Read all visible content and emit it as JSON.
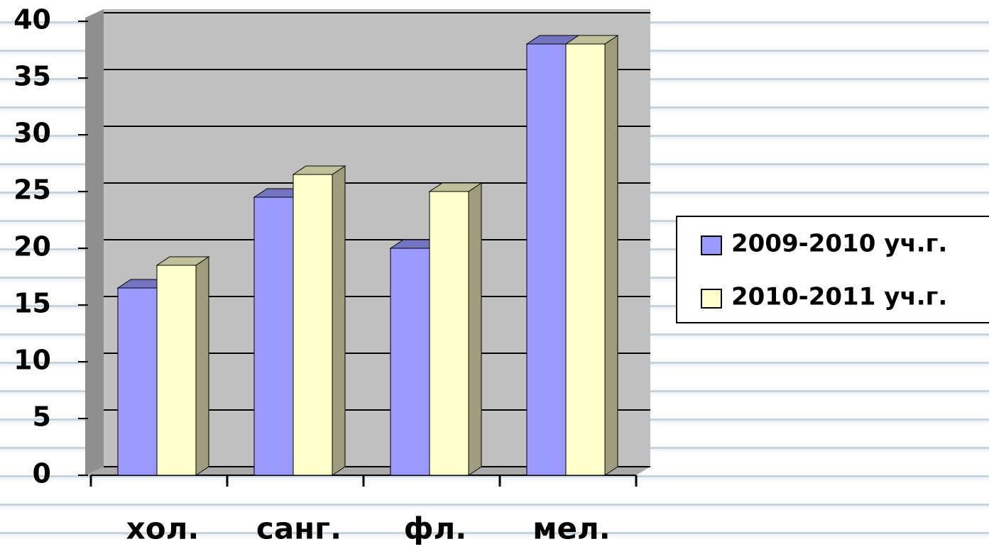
{
  "chart_data": {
    "type": "bar3d",
    "categories": [
      "хол.",
      "санг.",
      "фл.",
      "мел."
    ],
    "series": [
      {
        "name": "2009-2010 уч.г.",
        "color": "#9999ff",
        "values": [
          16.5,
          24.5,
          20,
          38
        ]
      },
      {
        "name": "2010-2011 уч.г.",
        "color": "#ffffcc",
        "values": [
          18.5,
          26.5,
          25,
          38
        ]
      }
    ],
    "ylim": [
      0,
      40
    ],
    "yticks": [
      0,
      5,
      10,
      15,
      20,
      25,
      30,
      35,
      40
    ],
    "grid": true,
    "legend": "right"
  }
}
